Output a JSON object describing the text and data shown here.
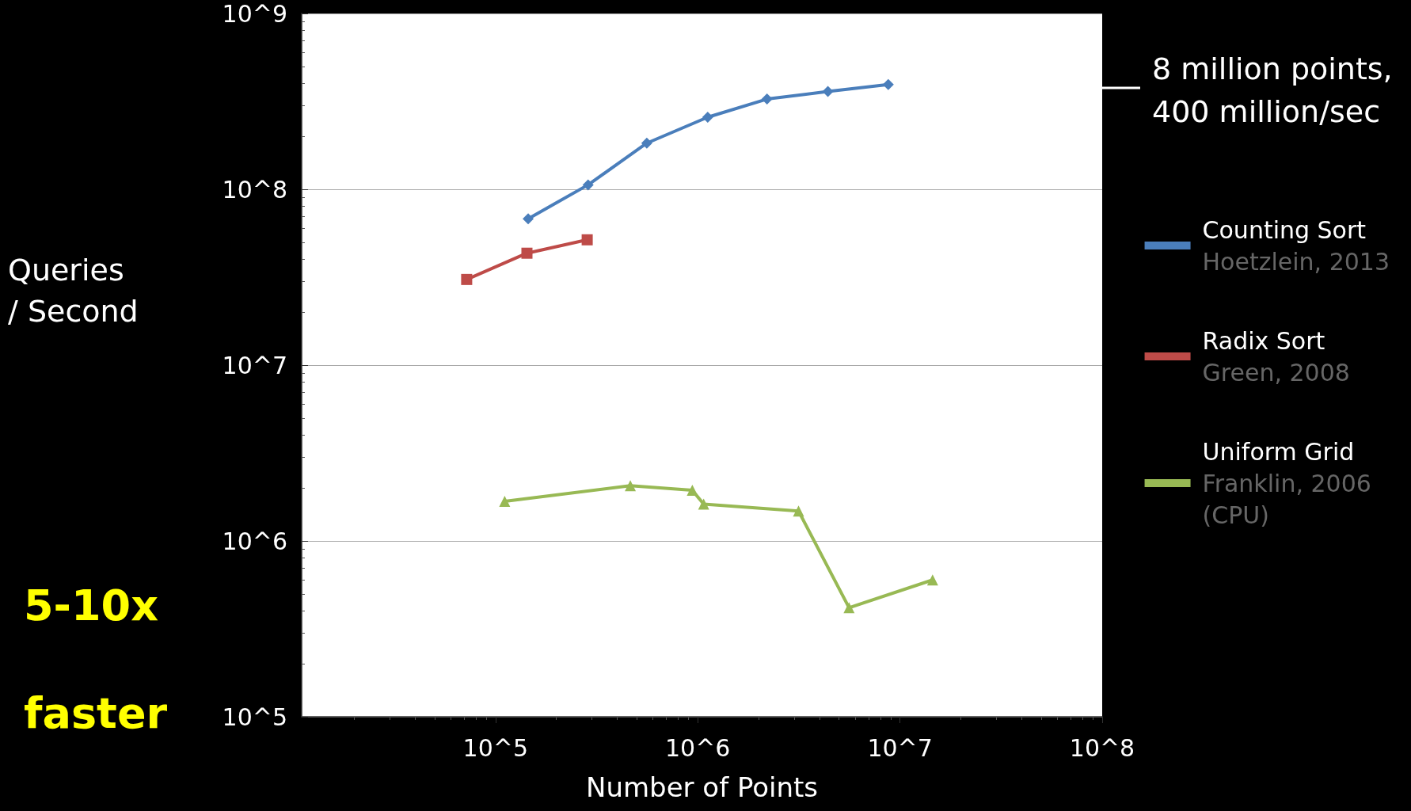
{
  "chart_data": {
    "type": "line",
    "xlabel": "Number of Points",
    "ylabel": "Queries / Second",
    "log": "xy",
    "grid": "y",
    "legend": "right",
    "xlim": [
      11000,
      100000000
    ],
    "xticks": [
      {
        "value": 100000,
        "label": "10^5"
      },
      {
        "value": 1000000,
        "label": "10^6"
      },
      {
        "value": 10000000,
        "label": "10^7"
      },
      {
        "value": 100000000,
        "label": "10^8"
      }
    ],
    "ylim": [
      100000,
      1000000000
    ],
    "yticks": [
      {
        "value": 100000,
        "label": "10^5"
      },
      {
        "value": 1000000,
        "label": "10^6"
      },
      {
        "value": 10000000,
        "label": "10^7"
      },
      {
        "value": 100000000,
        "label": "10^8"
      },
      {
        "value": 1000000000,
        "label": "10^9"
      }
    ],
    "series": [
      {
        "name": "Counting Sort\nHoetzlein, 2013",
        "color": "#4a7ebb",
        "marker": "diamond",
        "x": [
          145000,
          287000,
          560000,
          1120000,
          2200000,
          4400000,
          8750000
        ],
        "values": [
          68000000,
          106000000,
          183000000,
          257000000,
          326000000,
          360000000,
          394000000
        ]
      },
      {
        "name": "Radix Sort\nGreen, 2008",
        "color": "#be4b48",
        "marker": "square",
        "x": [
          72000,
          143000,
          284000
        ],
        "values": [
          30700000,
          43300000,
          51600000
        ]
      },
      {
        "name": "Uniform Grid\nFranklin, 2006\n(CPU)",
        "color": "#98b954",
        "marker": "triangle",
        "x": [
          111000,
          464000,
          940000,
          1070000,
          3150000,
          5600000,
          14500000
        ],
        "values": [
          1680000,
          2060000,
          1940000,
          1620000,
          1480000,
          417000,
          600000
        ]
      }
    ],
    "annotations": [
      "8 million points,\n400 million/sec",
      "5-10x faster"
    ]
  }
}
